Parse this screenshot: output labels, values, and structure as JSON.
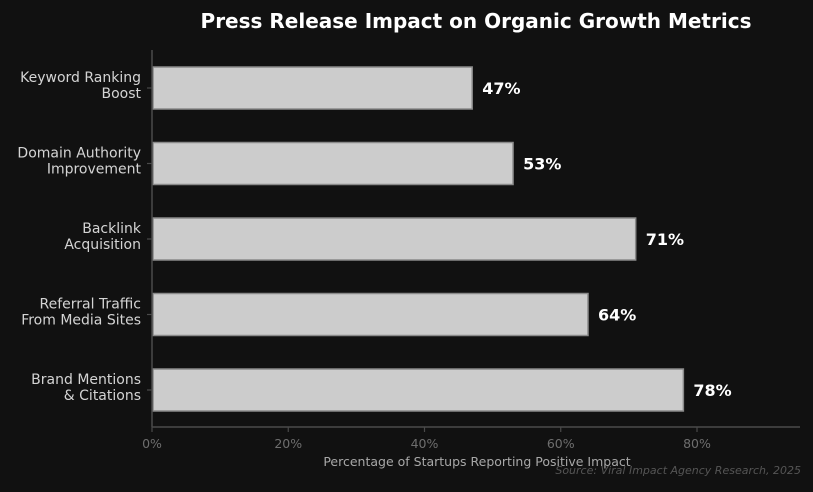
{
  "chart_data": {
    "type": "bar",
    "orientation": "horizontal",
    "title": "Press Release Impact on Organic Growth Metrics",
    "xlabel": "Percentage of Startups Reporting Positive Impact",
    "ylabel": "",
    "xlim": [
      0,
      95
    ],
    "xticks": [
      0,
      20,
      40,
      60,
      80
    ],
    "xtick_labels": [
      "0%",
      "20%",
      "40%",
      "60%",
      "80%"
    ],
    "categories": [
      [
        "Keyword Ranking",
        "Boost"
      ],
      [
        "Domain Authority",
        "Improvement"
      ],
      [
        "Backlink",
        "Acquisition"
      ],
      [
        "Referral Traffic",
        "From Media Sites"
      ],
      [
        "Brand Mentions",
        "& Citations"
      ]
    ],
    "values": [
      47,
      53,
      71,
      64,
      78
    ],
    "value_labels": [
      "47%",
      "53%",
      "71%",
      "64%",
      "78%"
    ],
    "source": "Source: Viral Impact Agency Research, 2025",
    "grid": false,
    "legend": "none",
    "colors": {
      "background": "#111111",
      "bar_fill": "#cccccc",
      "bar_edge": "#8a8a8a",
      "value_label": "#ffffff",
      "title": "#ffffff",
      "category_label": "#d4d4d4",
      "axis_label": "#a8a8a8",
      "tick_label": "#6e6e6e",
      "axis_line": "#4a4a4a",
      "source": "#555555"
    }
  }
}
